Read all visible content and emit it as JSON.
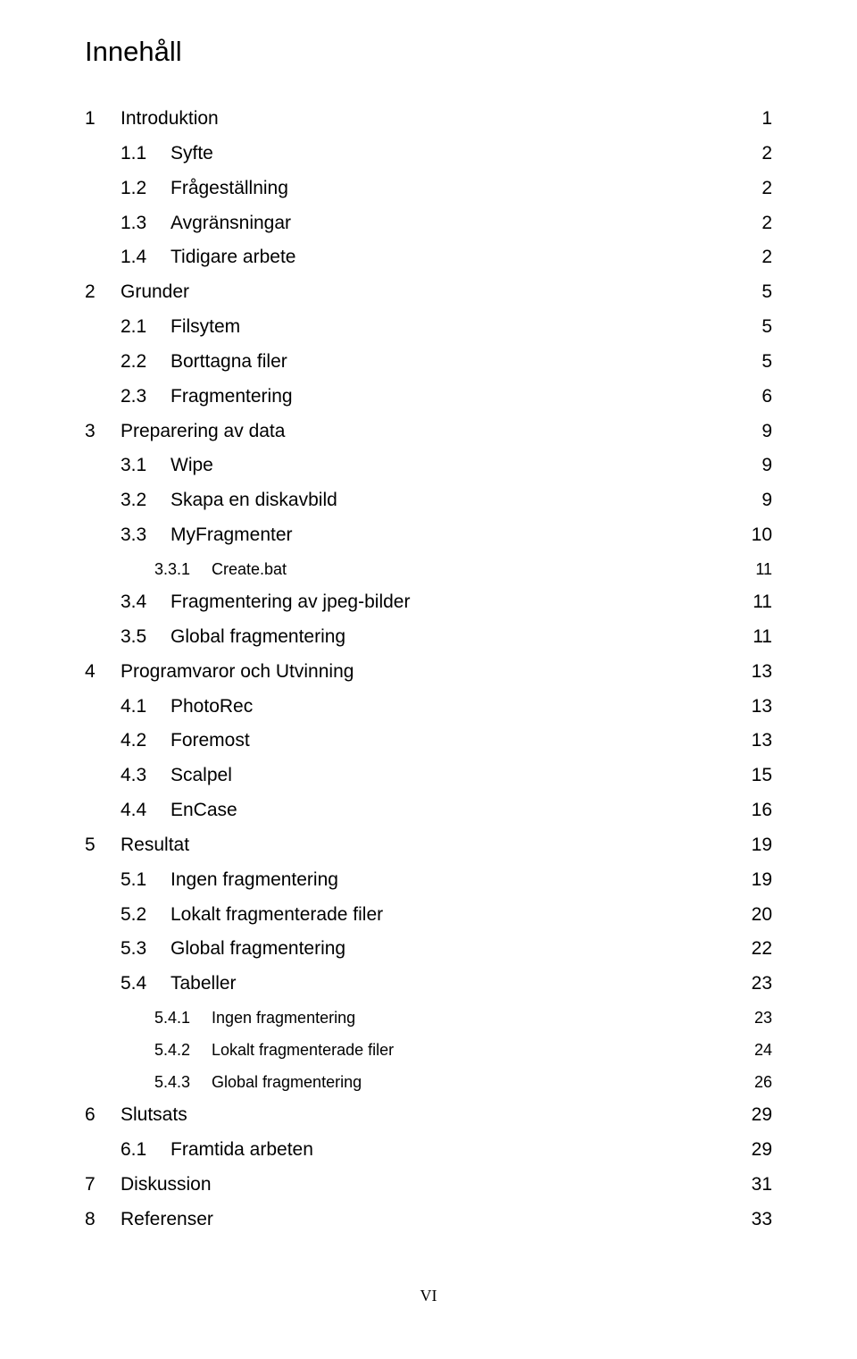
{
  "title": "Innehåll",
  "footer": "VI",
  "entries": [
    {
      "level": 1,
      "num": "1",
      "label": "Introduktion",
      "page": "1",
      "leader": "dense"
    },
    {
      "level": 2,
      "num": "1.1",
      "label": "Syfte",
      "page": "2",
      "leader": "dense"
    },
    {
      "level": 2,
      "num": "1.2",
      "label": "Frågeställning",
      "page": "2",
      "leader": "dense"
    },
    {
      "level": 2,
      "num": "1.3",
      "label": "Avgränsningar",
      "page": "2",
      "leader": "dense"
    },
    {
      "level": 2,
      "num": "1.4",
      "label": "Tidigare arbete",
      "page": "2",
      "leader": "dense"
    },
    {
      "level": 1,
      "num": "2",
      "label": "Grunder",
      "page": "5",
      "leader": "dense"
    },
    {
      "level": 2,
      "num": "2.1",
      "label": "Filsytem",
      "page": "5",
      "leader": "dense"
    },
    {
      "level": 2,
      "num": "2.2",
      "label": "Borttagna filer",
      "page": "5",
      "leader": "dense"
    },
    {
      "level": 2,
      "num": "2.3",
      "label": "Fragmentering",
      "page": "6",
      "leader": "dense"
    },
    {
      "level": 1,
      "num": "3",
      "label": "Preparering av data",
      "page": "9",
      "leader": "sparse"
    },
    {
      "level": 2,
      "num": "3.1",
      "label": "Wipe",
      "page": "9",
      "leader": "dense"
    },
    {
      "level": 2,
      "num": "3.2",
      "label": "Skapa en diskavbild",
      "page": "9",
      "leader": "dense"
    },
    {
      "level": 2,
      "num": "3.3",
      "label": "MyFragmenter",
      "page": "10",
      "leader": "dense"
    },
    {
      "level": 3,
      "num": "3.3.1",
      "label": "Create.bat",
      "page": "11",
      "leader": "dense"
    },
    {
      "level": 2,
      "num": "3.4",
      "label": "Fragmentering av jpeg-bilder",
      "page": "11",
      "leader": "dense"
    },
    {
      "level": 2,
      "num": "3.5",
      "label": "Global fragmentering",
      "page": "11",
      "leader": "dense"
    },
    {
      "level": 1,
      "num": "4",
      "label": "Programvaror och Utvinning",
      "page": "13",
      "leader": "sparse"
    },
    {
      "level": 2,
      "num": "4.1",
      "label": "PhotoRec",
      "page": "13",
      "leader": "dense"
    },
    {
      "level": 2,
      "num": "4.2",
      "label": "Foremost",
      "page": "13",
      "leader": "dense"
    },
    {
      "level": 2,
      "num": "4.3",
      "label": "Scalpel",
      "page": "15",
      "leader": "dense"
    },
    {
      "level": 2,
      "num": "4.4",
      "label": "EnCase",
      "page": "16",
      "leader": "dense"
    },
    {
      "level": 1,
      "num": "5",
      "label": "Resultat",
      "page": "19",
      "leader": "sparse"
    },
    {
      "level": 2,
      "num": "5.1",
      "label": "Ingen fragmentering",
      "page": "19",
      "leader": "dense"
    },
    {
      "level": 2,
      "num": "5.2",
      "label": "Lokalt fragmenterade filer",
      "page": "20",
      "leader": "dense"
    },
    {
      "level": 2,
      "num": "5.3",
      "label": "Global fragmentering",
      "page": "22",
      "leader": "dense"
    },
    {
      "level": 2,
      "num": "5.4",
      "label": "Tabeller",
      "page": "23",
      "leader": "dense"
    },
    {
      "level": 3,
      "num": "5.4.1",
      "label": "Ingen fragmentering",
      "page": "23",
      "leader": "dense"
    },
    {
      "level": 3,
      "num": "5.4.2",
      "label": "Lokalt fragmenterade filer",
      "page": "24",
      "leader": "dense"
    },
    {
      "level": 3,
      "num": "5.4.3",
      "label": "Global fragmentering",
      "page": "26",
      "leader": "dense"
    },
    {
      "level": 1,
      "num": "6",
      "label": "Slutsats",
      "page": "29",
      "leader": "dense"
    },
    {
      "level": 2,
      "num": "6.1",
      "label": "Framtida arbeten",
      "page": "29",
      "leader": "dense"
    },
    {
      "level": 1,
      "num": "7",
      "label": "Diskussion",
      "page": "31",
      "leader": "dense"
    },
    {
      "level": 1,
      "num": "8",
      "label": "Referenser",
      "page": "33",
      "leader": "dense"
    }
  ]
}
